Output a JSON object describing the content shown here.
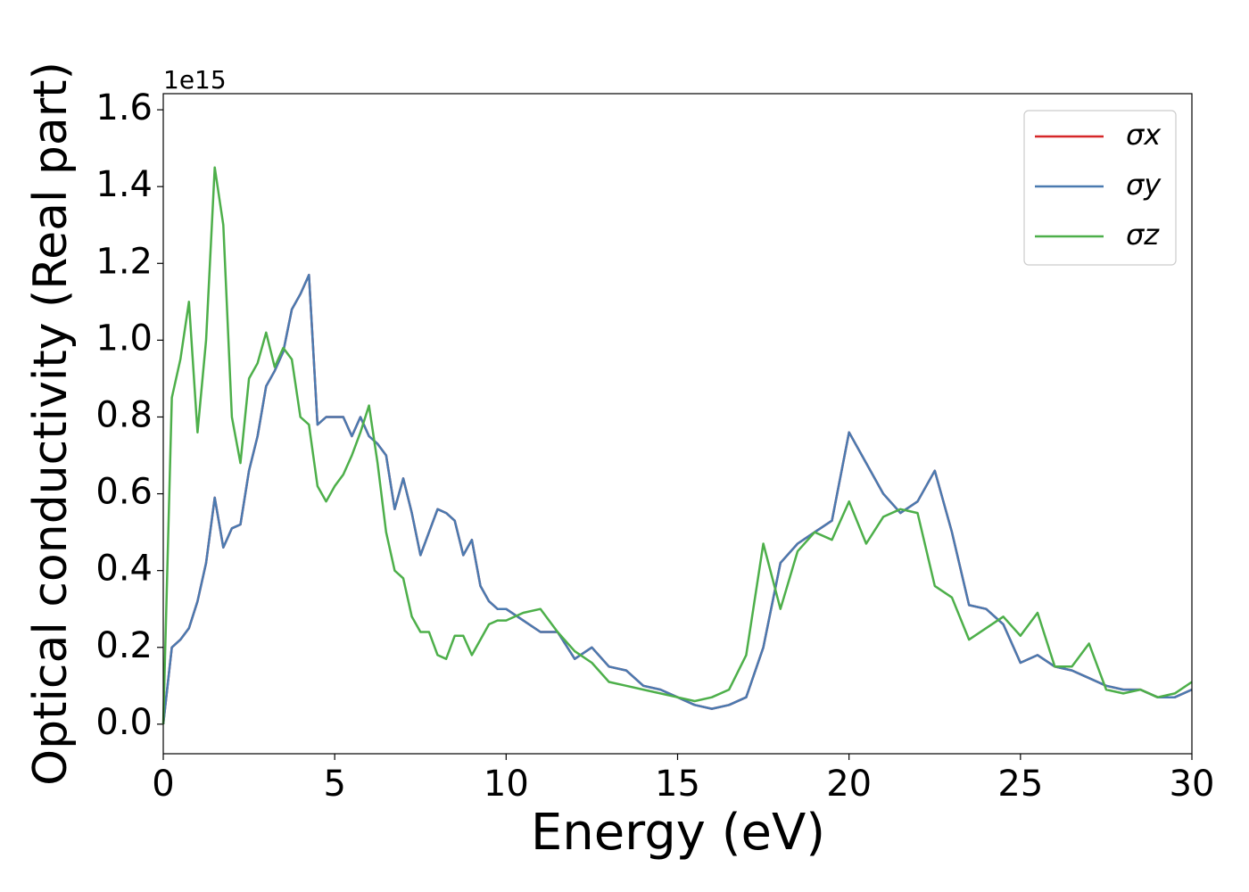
{
  "chart_data": {
    "type": "line",
    "xlabel": "Energy (eV)",
    "ylabel": "Optical conductivity (Real part)",
    "y_offset_label": "1e15",
    "xlim": [
      0,
      30
    ],
    "ylim": [
      -0.077,
      1.642
    ],
    "xticks": [
      0,
      5,
      10,
      15,
      20,
      25,
      30
    ],
    "yticks": [
      {
        "value": 0,
        "label": "0.0"
      },
      {
        "value": 0.2,
        "label": "0.2"
      },
      {
        "value": 0.4,
        "label": "0.4"
      },
      {
        "value": 0.6,
        "label": "0.6"
      },
      {
        "value": 0.8,
        "label": "0.8"
      },
      {
        "value": 1.0,
        "label": "1.0"
      },
      {
        "value": 1.2,
        "label": "1.2"
      },
      {
        "value": 1.4,
        "label": "1.4"
      },
      {
        "value": 1.6,
        "label": "1.6"
      }
    ],
    "legend": "upper right",
    "grid": false,
    "x": [
      0,
      0.25,
      0.5,
      0.75,
      1,
      1.25,
      1.5,
      1.75,
      2,
      2.25,
      2.5,
      2.75,
      3,
      3.25,
      3.5,
      3.75,
      4,
      4.25,
      4.5,
      4.75,
      5,
      5.25,
      5.5,
      5.75,
      6,
      6.25,
      6.5,
      6.75,
      7,
      7.25,
      7.5,
      7.75,
      8,
      8.25,
      8.5,
      8.75,
      9,
      9.25,
      9.5,
      9.75,
      10,
      10.5,
      11,
      11.5,
      12,
      12.5,
      13,
      13.5,
      14,
      14.5,
      15,
      15.5,
      16,
      16.5,
      17,
      17.5,
      18,
      18.5,
      19,
      19.5,
      20,
      20.5,
      21,
      21.5,
      22,
      22.5,
      23,
      23.5,
      24,
      24.5,
      25,
      25.5,
      26,
      26.5,
      27,
      27.5,
      28,
      28.5,
      29,
      29.5,
      30
    ],
    "series": [
      {
        "name": "σx",
        "color": "#d62728",
        "values": [
          0.0,
          0.2,
          0.22,
          0.25,
          0.32,
          0.42,
          0.59,
          0.46,
          0.51,
          0.52,
          0.66,
          0.75,
          0.88,
          0.92,
          0.97,
          1.08,
          1.12,
          1.17,
          0.78,
          0.8,
          0.8,
          0.8,
          0.75,
          0.8,
          0.75,
          0.73,
          0.7,
          0.56,
          0.64,
          0.55,
          0.44,
          0.5,
          0.56,
          0.55,
          0.53,
          0.44,
          0.48,
          0.36,
          0.32,
          0.3,
          0.3,
          0.27,
          0.24,
          0.24,
          0.17,
          0.2,
          0.15,
          0.14,
          0.1,
          0.09,
          0.07,
          0.05,
          0.04,
          0.05,
          0.07,
          0.2,
          0.42,
          0.47,
          0.5,
          0.53,
          0.76,
          0.68,
          0.6,
          0.55,
          0.58,
          0.66,
          0.5,
          0.31,
          0.3,
          0.26,
          0.16,
          0.18,
          0.15,
          0.14,
          0.12,
          0.1,
          0.09,
          0.09,
          0.07,
          0.07,
          0.09
        ]
      },
      {
        "name": "σy",
        "color": "#4a7ab0",
        "values": [
          0.0,
          0.2,
          0.22,
          0.25,
          0.32,
          0.42,
          0.59,
          0.46,
          0.51,
          0.52,
          0.66,
          0.75,
          0.88,
          0.92,
          0.97,
          1.08,
          1.12,
          1.17,
          0.78,
          0.8,
          0.8,
          0.8,
          0.75,
          0.8,
          0.75,
          0.73,
          0.7,
          0.56,
          0.64,
          0.55,
          0.44,
          0.5,
          0.56,
          0.55,
          0.53,
          0.44,
          0.48,
          0.36,
          0.32,
          0.3,
          0.3,
          0.27,
          0.24,
          0.24,
          0.17,
          0.2,
          0.15,
          0.14,
          0.1,
          0.09,
          0.07,
          0.05,
          0.04,
          0.05,
          0.07,
          0.2,
          0.42,
          0.47,
          0.5,
          0.53,
          0.76,
          0.68,
          0.6,
          0.55,
          0.58,
          0.66,
          0.5,
          0.31,
          0.3,
          0.26,
          0.16,
          0.18,
          0.15,
          0.14,
          0.12,
          0.1,
          0.09,
          0.09,
          0.07,
          0.07,
          0.09
        ]
      },
      {
        "name": "σz",
        "color": "#4daf4a",
        "values": [
          0.0,
          0.85,
          0.95,
          1.1,
          0.76,
          1.0,
          1.45,
          1.3,
          0.8,
          0.68,
          0.9,
          0.94,
          1.02,
          0.93,
          0.98,
          0.95,
          0.8,
          0.78,
          0.62,
          0.58,
          0.62,
          0.65,
          0.7,
          0.76,
          0.83,
          0.68,
          0.5,
          0.4,
          0.38,
          0.28,
          0.24,
          0.24,
          0.18,
          0.17,
          0.23,
          0.23,
          0.18,
          0.22,
          0.26,
          0.27,
          0.27,
          0.29,
          0.3,
          0.24,
          0.19,
          0.16,
          0.11,
          0.1,
          0.09,
          0.08,
          0.07,
          0.06,
          0.07,
          0.09,
          0.18,
          0.47,
          0.3,
          0.45,
          0.5,
          0.48,
          0.58,
          0.47,
          0.54,
          0.56,
          0.55,
          0.36,
          0.33,
          0.22,
          0.25,
          0.28,
          0.23,
          0.29,
          0.15,
          0.15,
          0.21,
          0.09,
          0.08,
          0.09,
          0.07,
          0.08,
          0.11
        ]
      }
    ]
  }
}
